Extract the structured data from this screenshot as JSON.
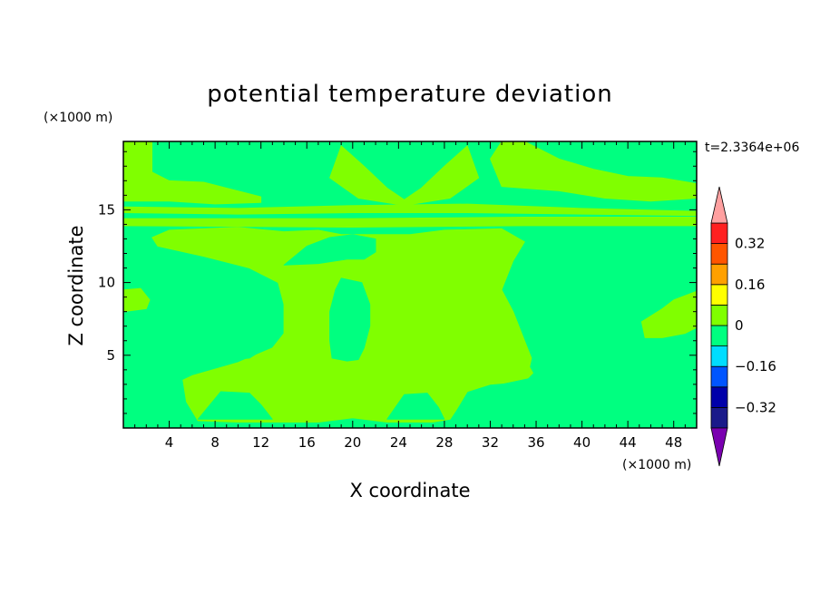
{
  "chart_data": {
    "type": "heatmap",
    "title": "potential temperature deviation",
    "xlabel": "X coordinate",
    "ylabel": "Z coordinate",
    "x_unit": "(×1000 m)",
    "y_unit": "(×1000 m)",
    "time_label": "t=2.3364e+06",
    "xlim": [
      0,
      50
    ],
    "ylim": [
      0,
      19.7
    ],
    "x_ticks": [
      4,
      8,
      12,
      16,
      20,
      24,
      28,
      32,
      36,
      40,
      44,
      48
    ],
    "x_tick_labels": [
      "4",
      "8",
      "12",
      "16",
      "20",
      "24",
      "28",
      "32",
      "36",
      "40",
      "44",
      "48"
    ],
    "y_ticks": [
      5,
      10,
      15
    ],
    "y_tick_labels": [
      "5",
      "10",
      "15"
    ],
    "colorbar": {
      "levels": [
        -0.4,
        -0.32,
        -0.24,
        -0.16,
        -0.08,
        0,
        0.08,
        0.16,
        0.24,
        0.32,
        0.4
      ],
      "colors": [
        "#1a1a8a",
        "#0000aa",
        "#0055ff",
        "#00ddff",
        "#00ff80",
        "#80ff00",
        "#ffff00",
        "#ffa000",
        "#ff5500",
        "#ff2020"
      ],
      "under_color": "#7a00b0",
      "over_color": "#ffa0a0",
      "labels": [
        {
          "value": -0.32,
          "text": "−0.32"
        },
        {
          "value": -0.16,
          "text": "−0.16"
        },
        {
          "value": 0,
          "text": "0"
        },
        {
          "value": 0.16,
          "text": "0.16"
        },
        {
          "value": 0.32,
          "text": "0.32"
        }
      ]
    },
    "background_value_color": "#00ff80",
    "regions": [
      {
        "name": "upper-left-band",
        "color": "#80ff00",
        "points": [
          [
            0,
            19.7
          ],
          [
            2.5,
            19.7
          ],
          [
            2.5,
            17.6
          ],
          [
            4,
            17
          ],
          [
            7,
            16.9
          ],
          [
            10,
            16.3
          ],
          [
            12,
            15.9
          ],
          [
            12,
            15.5
          ],
          [
            8,
            15.4
          ],
          [
            4,
            15.6
          ],
          [
            0,
            15.6
          ]
        ]
      },
      {
        "name": "stratosphere-band",
        "color": "#80ff00",
        "points": [
          [
            0,
            15.2
          ],
          [
            10,
            15.1
          ],
          [
            20,
            15.3
          ],
          [
            30,
            15.4
          ],
          [
            40,
            15.1
          ],
          [
            50,
            14.9
          ],
          [
            50,
            14.6
          ],
          [
            40,
            14.7
          ],
          [
            30,
            14.8
          ],
          [
            20,
            14.8
          ],
          [
            10,
            14.7
          ],
          [
            0,
            14.8
          ]
        ]
      },
      {
        "name": "tropopause-band",
        "color": "#80ff00",
        "points": [
          [
            0,
            14.4
          ],
          [
            20,
            14.4
          ],
          [
            35,
            14.5
          ],
          [
            50,
            14.5
          ],
          [
            50,
            13.9
          ],
          [
            35,
            13.9
          ],
          [
            20,
            13.8
          ],
          [
            0,
            13.9
          ]
        ]
      },
      {
        "name": "upper-right-band",
        "color": "#80ff00",
        "points": [
          [
            33,
            16.6
          ],
          [
            38,
            16.3
          ],
          [
            42,
            15.8
          ],
          [
            46,
            15.6
          ],
          [
            50,
            15.8
          ],
          [
            50,
            16.8
          ],
          [
            47,
            17.2
          ],
          [
            44,
            17.3
          ],
          [
            41,
            17.8
          ],
          [
            38,
            18.5
          ],
          [
            35,
            19.7
          ],
          [
            33,
            19.7
          ],
          [
            32,
            18.5
          ]
        ]
      },
      {
        "name": "gravity-wave-fan",
        "color": "#80ff00",
        "points": [
          [
            19,
            19.4
          ],
          [
            21,
            18
          ],
          [
            23,
            16.5
          ],
          [
            24.5,
            15.7
          ],
          [
            26,
            16.5
          ],
          [
            28,
            18
          ],
          [
            30,
            19.4
          ],
          [
            31,
            17.2
          ],
          [
            28.5,
            15.8
          ],
          [
            24.5,
            15.3
          ],
          [
            20.5,
            15.8
          ],
          [
            18,
            17.2
          ]
        ]
      },
      {
        "name": "troposphere-main",
        "color": "#80ff00",
        "points": [
          [
            4,
            13.6
          ],
          [
            10,
            13.8
          ],
          [
            14,
            13.5
          ],
          [
            17,
            13.6
          ],
          [
            19,
            13.3
          ],
          [
            22,
            13.3
          ],
          [
            25,
            13.3
          ],
          [
            28,
            13.6
          ],
          [
            33,
            13.7
          ],
          [
            35,
            12.8
          ],
          [
            34,
            11.5
          ],
          [
            33.5,
            10.5
          ],
          [
            33,
            9.5
          ],
          [
            34,
            8
          ],
          [
            35,
            6
          ],
          [
            35.5,
            5
          ],
          [
            36,
            4
          ],
          [
            35,
            3.2
          ],
          [
            32,
            3
          ],
          [
            30,
            2.5
          ],
          [
            29,
            1.2
          ],
          [
            28.5,
            0.6
          ],
          [
            27,
            0.4
          ],
          [
            23,
            0.4
          ],
          [
            20,
            0.7
          ],
          [
            17,
            0.4
          ],
          [
            10,
            0.4
          ],
          [
            6.5,
            0.5
          ],
          [
            5.5,
            1.8
          ],
          [
            5.2,
            3.3
          ],
          [
            6,
            3.6
          ],
          [
            10,
            4.5
          ],
          [
            13,
            5.5
          ],
          [
            14,
            6.5
          ],
          [
            14,
            8.5
          ],
          [
            13.5,
            10
          ],
          [
            11,
            11
          ],
          [
            7,
            11.8
          ],
          [
            3,
            12.5
          ],
          [
            2.5,
            13.1
          ]
        ]
      },
      {
        "name": "left-middle-green",
        "color": "#00ff80",
        "points": [
          [
            10.5,
            9.9
          ],
          [
            12.5,
            9
          ],
          [
            13.5,
            7.5
          ],
          [
            13,
            5.8
          ],
          [
            11,
            4.8
          ],
          [
            8.5,
            4.6
          ],
          [
            6.5,
            3.8
          ],
          [
            5,
            3.7
          ],
          [
            4.5,
            4.5
          ],
          [
            4,
            6.5
          ],
          [
            3.5,
            8.5
          ],
          [
            2.5,
            9.5
          ],
          [
            0,
            10
          ]
        ]
      },
      {
        "name": "upper-middle-green",
        "color": "#00ff80",
        "points": [
          [
            14,
            11.2
          ],
          [
            17,
            11.3
          ],
          [
            19.5,
            11.6
          ],
          [
            21,
            11.6
          ],
          [
            22,
            12.1
          ],
          [
            22,
            13
          ],
          [
            20,
            13.3
          ],
          [
            18,
            13.1
          ],
          [
            16,
            12.5
          ]
        ]
      },
      {
        "name": "center-green",
        "color": "#00ff80",
        "points": [
          [
            19,
            10.3
          ],
          [
            20.8,
            10
          ],
          [
            21.5,
            8.5
          ],
          [
            21.5,
            7
          ],
          [
            21,
            5.5
          ],
          [
            20.5,
            4.7
          ],
          [
            19.5,
            4.6
          ],
          [
            18.2,
            4.8
          ],
          [
            18,
            6
          ],
          [
            18,
            8
          ],
          [
            18.5,
            9.5
          ]
        ]
      },
      {
        "name": "right-lower-green",
        "color": "#00ff80",
        "points": [
          [
            50,
            0.4
          ],
          [
            50,
            12.4
          ],
          [
            46,
            12.4
          ],
          [
            42.5,
            10
          ],
          [
            38,
            9.5
          ],
          [
            36.5,
            8.4
          ],
          [
            36,
            6
          ],
          [
            35.5,
            4.2
          ],
          [
            36,
            3.5
          ],
          [
            33,
            3
          ],
          [
            31,
            2.7
          ],
          [
            30,
            1.5
          ],
          [
            29,
            0.5
          ]
        ]
      },
      {
        "name": "right-bump",
        "color": "#80ff00",
        "points": [
          [
            50,
            9.4
          ],
          [
            48,
            8.8
          ],
          [
            47,
            8.2
          ],
          [
            45.2,
            7.3
          ],
          [
            45.5,
            6.2
          ],
          [
            47,
            6.2
          ],
          [
            49,
            6.5
          ],
          [
            50,
            6.9
          ]
        ]
      },
      {
        "name": "left-edge-patch",
        "color": "#80ff00",
        "points": [
          [
            0,
            9.5
          ],
          [
            1.5,
            9.6
          ],
          [
            2.3,
            8.8
          ],
          [
            2,
            8.2
          ],
          [
            0,
            8
          ]
        ]
      },
      {
        "name": "bottom-left-green",
        "color": "#00ff80",
        "points": [
          [
            6.5,
            0.6
          ],
          [
            8.5,
            2.5
          ],
          [
            11,
            2.4
          ],
          [
            12,
            1.6
          ],
          [
            13,
            0.6
          ]
        ]
      },
      {
        "name": "bottom-center-green",
        "color": "#00ff80",
        "points": [
          [
            23,
            0.6
          ],
          [
            24.5,
            2.3
          ],
          [
            26.5,
            2.4
          ],
          [
            27.5,
            1.4
          ],
          [
            28,
            0.6
          ]
        ]
      },
      {
        "name": "left-top-edge",
        "color": "#80ff00",
        "points": [
          [
            0,
            19.7
          ],
          [
            1.2,
            19.7
          ],
          [
            1.2,
            17.8
          ],
          [
            0,
            17.4
          ]
        ]
      }
    ]
  }
}
